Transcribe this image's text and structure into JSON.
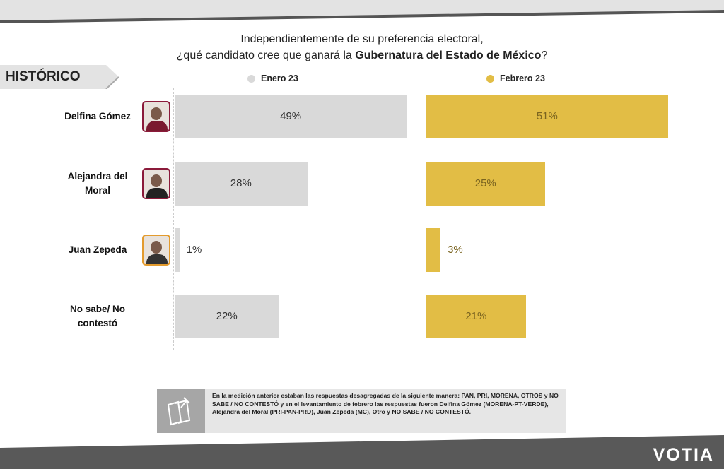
{
  "header": {
    "title_line1": "Independientemente de su preferencia electoral,",
    "title_line2_prefix": "¿qué candidato cree que ganará la ",
    "title_line2_bold": "Gubernatura del Estado de México",
    "title_line2_suffix": "?",
    "section_tag": "HISTÓRICO"
  },
  "chart_data": {
    "type": "bar",
    "orientation": "horizontal",
    "categories": [
      "Delfina Gómez",
      "Alejandra del Moral",
      "Juan Zepeda",
      "No sabe/ No contestó"
    ],
    "series": [
      {
        "name": "Enero 23",
        "values": [
          49,
          28,
          1,
          22
        ],
        "labels": [
          "49%",
          "28%",
          "1%",
          "22%"
        ],
        "color": "#d9d9d9"
      },
      {
        "name": "Febrero 23",
        "values": [
          51,
          25,
          3,
          21
        ],
        "labels": [
          "51%",
          "25%",
          "3%",
          "21%"
        ],
        "color": "#e2bd45"
      }
    ],
    "unit": "%"
  },
  "note": {
    "text": "En la medición anterior estaban las respuestas desagregadas de la siguiente manera: PAN, PRI, MORENA, OTROS y NO SABE / NO CONTESTÓ y en el levantamiento de febrero las respuestas fueron Delfina Gómez (MORENA-PT-VERDE), Alejandra del Moral (PRI-PAN-PRD), Juan Zepeda (MC), Otro y NO SABE / NO CONTESTÓ.",
    "icon": "pinned-note-icon"
  },
  "footer": {
    "logo": "VOTIA"
  },
  "photo_borders": [
    "#8b1a3a",
    "#8b1a3a",
    null,
    null
  ],
  "photo_border_colors": [
    "#8b1a3a",
    "#8b1a3a",
    "#e39b2e"
  ]
}
